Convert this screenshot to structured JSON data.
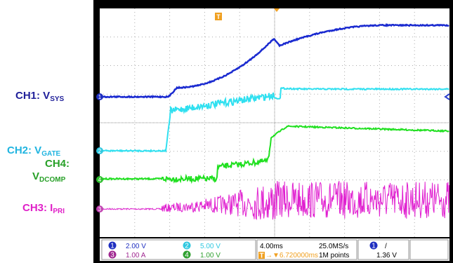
{
  "labels": {
    "ch1": {
      "text": "CH1: V",
      "sub": "SYS"
    },
    "ch2": {
      "text": "CH2: V",
      "sub": "GATE"
    },
    "ch4": {
      "line1": "CH4:",
      "text": "V",
      "sub": "DCOMP"
    },
    "ch3": {
      "text": "CH3: I",
      "sub": "PRI"
    }
  },
  "status": {
    "ch1": {
      "num": "1",
      "scale": "2.00 V"
    },
    "ch2": {
      "num": "2",
      "scale": "5.00 V"
    },
    "ch3": {
      "num": "3",
      "scale": "1.00 A"
    },
    "ch4": {
      "num": "4",
      "scale": "1.00 V"
    },
    "timebase": "4.00ms",
    "trigger_icon": "T",
    "trigger_pos": "→▼6.720000ms",
    "sample_rate": "25.0MS/s",
    "record": "1M points",
    "trig_src": "1",
    "trig_slope": "/",
    "trig_level": "1.36 V"
  }
}
